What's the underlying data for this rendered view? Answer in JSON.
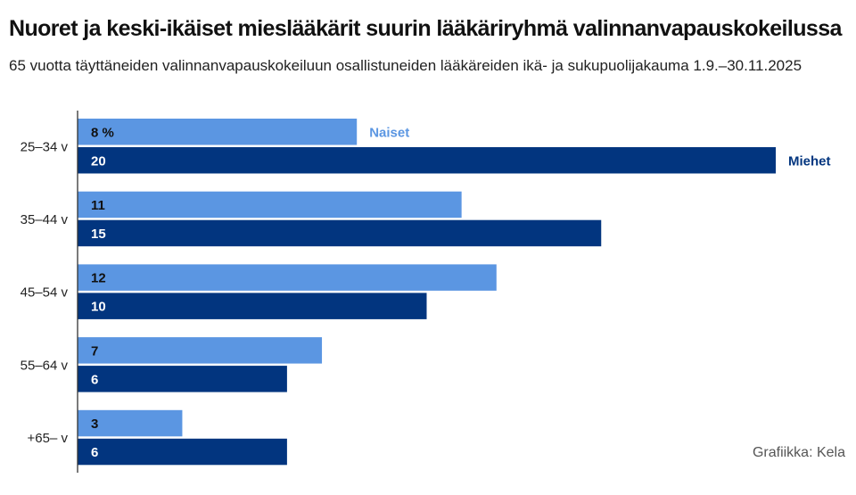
{
  "header": {
    "title": "Nuoret ja keski-ikäiset mieslääkärit suurin lääkäriryhmä valinnanvapauskokeilussa",
    "subtitle": "65 vuotta täyttäneiden valinnanvapauskokeiluun osallistuneiden lääkäreiden ikä- ja sukupuolijakauma 1.9.–30.11.2025"
  },
  "credit": "Grafiikka: Kela",
  "colors": {
    "naiset": "#5b96e2",
    "miehet": "#02357f",
    "axis": "#333333"
  },
  "chart_data": {
    "type": "bar",
    "orientation": "horizontal",
    "title": "Nuoret ja keski-ikäiset mieslääkärit suurin lääkäriryhmä valinnanvapauskokeilussa",
    "subtitle": "65 vuotta täyttäneiden valinnanvapauskokeiluun osallistuneiden lääkäreiden ikä- ja sukupuolijakauma 1.9.–30.11.2025",
    "categories": [
      "25–34 v",
      "35–44 v",
      "45–54 v",
      "55–64 v",
      "+65– v"
    ],
    "series": [
      {
        "name": "Naiset",
        "values": [
          8,
          11,
          12,
          7,
          3
        ],
        "labels": [
          "8 %",
          "11",
          "12",
          "7",
          "3"
        ]
      },
      {
        "name": "Miehet",
        "values": [
          20,
          15,
          10,
          6,
          6
        ],
        "labels": [
          "20",
          "15",
          "10",
          "6",
          "6"
        ]
      }
    ],
    "unit": "%",
    "xlim": [
      0,
      20
    ],
    "grid": false,
    "legend": "inline labels beside first bars"
  }
}
